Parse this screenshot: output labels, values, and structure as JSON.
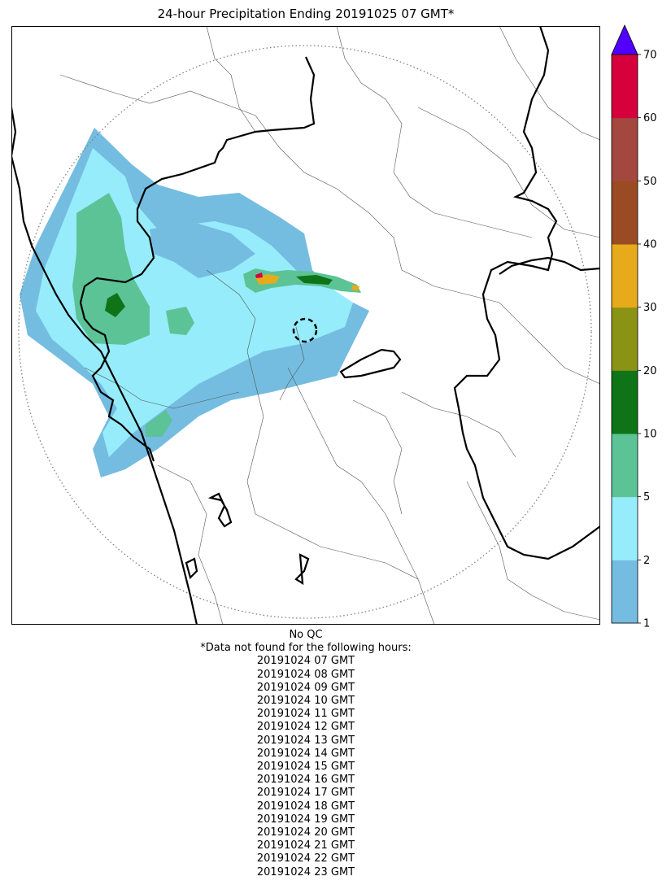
{
  "title": "24-hour Precipitation Ending 20191025 07 GMT*",
  "colorbar": {
    "bounds": [
      1,
      2,
      5,
      10,
      20,
      30,
      40,
      50,
      60,
      70
    ],
    "labels": [
      "1",
      "2",
      "5",
      "10",
      "20",
      "30",
      "40",
      "50",
      "60",
      "70"
    ],
    "colors": [
      "#74bde0",
      "#96ecfb",
      "#5cc397",
      "#0e7417",
      "#8a9314",
      "#e6aa1b",
      "#9a4b24",
      "#a4473f",
      "#d5003c"
    ],
    "extend_color": "#5100ff"
  },
  "notes": {
    "qc": "No QC",
    "missing_header": "*Data not found for the following hours:",
    "missing_hours": [
      "20191024 07 GMT",
      "20191024 08 GMT",
      "20191024 09 GMT",
      "20191024 10 GMT",
      "20191024 11 GMT",
      "20191024 12 GMT",
      "20191024 13 GMT",
      "20191024 14 GMT",
      "20191024 15 GMT",
      "20191024 16 GMT",
      "20191024 17 GMT",
      "20191024 18 GMT",
      "20191024 19 GMT",
      "20191024 20 GMT",
      "20191024 21 GMT",
      "20191024 22 GMT",
      "20191024 23 GMT"
    ]
  }
}
